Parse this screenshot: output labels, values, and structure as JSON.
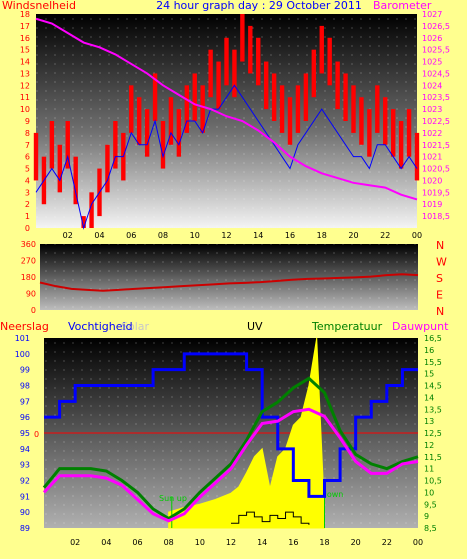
{
  "title": "24 hour graph day : 29 October 2011",
  "colors": {
    "background": "#ffff8f",
    "wind": "#ff0000",
    "wind_avg": "#0000ff",
    "barometer": "#ff00ff",
    "direction": "#cc0000",
    "humidity": "#0000ff",
    "temperature": "#008000",
    "dewpoint": "#ff00ff",
    "rain": "#ff0000",
    "solar": "#ffff00",
    "uv": "#000000",
    "sun_markers": "#00cc00"
  },
  "chart_data": [
    {
      "type": "line",
      "name": "wind-barometer",
      "left_label": "Windsnelheid",
      "right_label": "Barometer",
      "x_ticks": [
        "02",
        "04",
        "06",
        "08",
        "10",
        "12",
        "14",
        "16",
        "18",
        "20",
        "22",
        "00"
      ],
      "x_range": [
        0,
        24
      ],
      "y_left_range": [
        0,
        18
      ],
      "y_left_ticks": [
        0,
        1,
        2,
        3,
        4,
        5,
        6,
        7,
        8,
        9,
        10,
        11,
        12,
        13,
        14,
        15,
        16,
        17,
        18
      ],
      "y_right_range": [
        1018,
        1027
      ],
      "y_right_ticks": [
        "1018,5",
        "1019",
        "1019,5",
        "1020",
        "1020,5",
        "1021",
        "1021,5",
        "1022",
        "1022,5",
        "1023",
        "1023,5",
        "1024",
        "1024,5",
        "1025",
        "1025,5",
        "1026",
        "1026,5",
        "1027"
      ],
      "series": [
        {
          "key": "gust",
          "axis": "left",
          "x": [
            0,
            0.5,
            1,
            1.5,
            2,
            2.5,
            3,
            3.5,
            4,
            4.5,
            5,
            5.5,
            6,
            6.5,
            7,
            7.5,
            8,
            8.5,
            9,
            9.5,
            10,
            10.5,
            11,
            11.5,
            12,
            12.5,
            13,
            13.5,
            14,
            14.5,
            15,
            15.5,
            16,
            16.5,
            17,
            17.5,
            18,
            18.5,
            19,
            19.5,
            20,
            20.5,
            21,
            21.5,
            22,
            22.5,
            23,
            23.5,
            24
          ],
          "y": [
            8,
            6,
            9,
            7,
            9,
            6,
            1,
            3,
            5,
            7,
            9,
            8,
            12,
            11,
            10,
            13,
            9,
            11,
            10,
            12,
            13,
            12,
            15,
            14,
            16,
            15,
            18,
            17,
            16,
            14,
            13,
            12,
            11,
            12,
            13,
            15,
            17,
            16,
            14,
            13,
            12,
            11,
            10,
            12,
            11,
            10,
            9,
            10,
            8
          ]
        },
        {
          "key": "average",
          "axis": "left",
          "x": [
            0,
            0.5,
            1,
            1.5,
            2,
            2.5,
            3,
            3.5,
            4,
            4.5,
            5,
            5.5,
            6,
            6.5,
            7,
            7.5,
            8,
            8.5,
            9,
            9.5,
            10,
            10.5,
            11,
            11.5,
            12,
            12.5,
            13,
            13.5,
            14,
            14.5,
            15,
            15.5,
            16,
            16.5,
            17,
            17.5,
            18,
            18.5,
            19,
            19.5,
            20,
            20.5,
            21,
            21.5,
            22,
            22.5,
            23,
            23.5,
            24
          ],
          "y": [
            3,
            4,
            5,
            4,
            6,
            3,
            0,
            2,
            3,
            4,
            6,
            6,
            8,
            7,
            7,
            9,
            6,
            8,
            7,
            9,
            9,
            8,
            10,
            10,
            11,
            12,
            11,
            10,
            9,
            8,
            7,
            6,
            5,
            7,
            8,
            9,
            10,
            9,
            8,
            7,
            6,
            6,
            5,
            7,
            7,
            6,
            5,
            6,
            5
          ]
        },
        {
          "key": "barometer",
          "axis": "right",
          "x": [
            0,
            1,
            2,
            3,
            4,
            5,
            6,
            7,
            8,
            9,
            10,
            11,
            12,
            13,
            14,
            15,
            16,
            17,
            18,
            19,
            20,
            21,
            22,
            23,
            24
          ],
          "y": [
            1026.8,
            1026.6,
            1026.2,
            1025.8,
            1025.6,
            1025.3,
            1024.9,
            1024.5,
            1024.0,
            1023.6,
            1023.2,
            1023.0,
            1022.7,
            1022.5,
            1022.1,
            1021.6,
            1021.0,
            1020.6,
            1020.3,
            1020.1,
            1019.9,
            1019.8,
            1019.7,
            1019.4,
            1019.2
          ]
        }
      ]
    },
    {
      "type": "line",
      "name": "wind-direction",
      "y_ticks": [
        "360",
        "270",
        "180",
        "90",
        "0"
      ],
      "y_range": [
        0,
        360
      ],
      "compass_labels": [
        "N",
        "W",
        "S",
        "E",
        "N"
      ],
      "series": [
        {
          "key": "direction",
          "x": [
            0,
            1,
            2,
            3,
            4,
            5,
            6,
            7,
            8,
            9,
            10,
            11,
            12,
            13,
            14,
            15,
            16,
            17,
            18,
            19,
            20,
            21,
            22,
            23,
            24
          ],
          "y": [
            150,
            130,
            115,
            110,
            105,
            110,
            115,
            120,
            125,
            130,
            135,
            140,
            145,
            148,
            152,
            158,
            165,
            170,
            172,
            175,
            178,
            182,
            190,
            195,
            190
          ]
        }
      ]
    },
    {
      "type": "line",
      "name": "weather",
      "labels": {
        "rain": "Neerslag",
        "humidity": "Vochtigheid",
        "solar": "Solar",
        "uv": "UV",
        "temperature": "Temperatuur",
        "dewpoint": "Dauwpunt"
      },
      "sun_up_label": "Sun up",
      "sun_down_label": "Sun down",
      "x_ticks": [
        "02",
        "04",
        "06",
        "08",
        "10",
        "12",
        "14",
        "16",
        "18",
        "20",
        "22",
        "00"
      ],
      "x_range": [
        0,
        24
      ],
      "y_left_range": [
        89,
        101
      ],
      "y_left_ticks": [
        "89",
        "90",
        "91",
        "92",
        "93",
        "94",
        "95",
        "96",
        "97",
        "98",
        "99",
        "100",
        "101"
      ],
      "y_right_range": [
        8.5,
        16.5
      ],
      "y_right_ticks": [
        "8,5",
        "9",
        "9,5",
        "10",
        "10,5",
        "11",
        "11,5",
        "12",
        "12,5",
        "13",
        "13,5",
        "14",
        "14,5",
        "15",
        "15,5",
        "16",
        "16,5"
      ],
      "rain_zero_label": "0",
      "series": [
        {
          "key": "humidity",
          "axis": "left",
          "x": [
            0,
            1,
            2,
            3,
            4,
            5,
            6,
            7,
            8,
            9,
            10,
            11,
            12,
            13,
            14,
            15,
            16,
            17,
            18,
            19,
            20,
            21,
            22,
            23,
            24
          ],
          "y": [
            96,
            97,
            98,
            98,
            98,
            98,
            98,
            99,
            99,
            100,
            100,
            100,
            100,
            99,
            96,
            94,
            92,
            91,
            92,
            94,
            96,
            97,
            98,
            99,
            99
          ]
        },
        {
          "key": "temperature",
          "axis": "right",
          "x": [
            0,
            1,
            2,
            3,
            4,
            5,
            6,
            7,
            8,
            9,
            10,
            11,
            12,
            13,
            14,
            15,
            16,
            17,
            18,
            19,
            20,
            21,
            22,
            23,
            24
          ],
          "y": [
            10.2,
            11.0,
            11.0,
            11.0,
            10.9,
            10.5,
            10.0,
            9.3,
            8.9,
            9.3,
            10.0,
            10.6,
            11.2,
            12.2,
            13.4,
            13.8,
            14.4,
            14.8,
            14.2,
            12.6,
            11.6,
            11.2,
            11.0,
            11.3,
            11.5
          ]
        },
        {
          "key": "dewpoint",
          "axis": "right",
          "x": [
            0,
            1,
            2,
            3,
            4,
            5,
            6,
            7,
            8,
            9,
            10,
            11,
            12,
            13,
            14,
            15,
            16,
            17,
            18,
            19,
            20,
            21,
            22,
            23,
            24
          ],
          "y": [
            10.0,
            10.7,
            10.7,
            10.7,
            10.6,
            10.3,
            9.7,
            9.1,
            8.8,
            9.1,
            9.8,
            10.4,
            11.0,
            12.0,
            12.9,
            13.0,
            13.4,
            13.5,
            13.2,
            12.3,
            11.3,
            10.8,
            10.8,
            11.2,
            11.3
          ]
        },
        {
          "key": "solar",
          "axis": "left",
          "x": [
            8,
            9,
            10,
            11,
            12,
            12.5,
            13,
            13.5,
            14,
            14.5,
            15,
            15.5,
            16,
            16.5,
            17,
            17.5,
            18
          ],
          "y": [
            90,
            90.3,
            90.5,
            90.8,
            91.2,
            91.6,
            92.5,
            93.5,
            94,
            91.5,
            93.5,
            94,
            95.5,
            96,
            98,
            101,
            90
          ]
        },
        {
          "key": "uv",
          "axis": "left",
          "x": [
            12,
            12.5,
            13,
            13.5,
            14,
            14.5,
            15,
            15.5,
            16,
            16.5,
            17
          ],
          "y": [
            89.3,
            89.8,
            90,
            89.7,
            89.4,
            89.8,
            89.6,
            90,
            89.7,
            89.3,
            89.2
          ]
        }
      ]
    }
  ]
}
